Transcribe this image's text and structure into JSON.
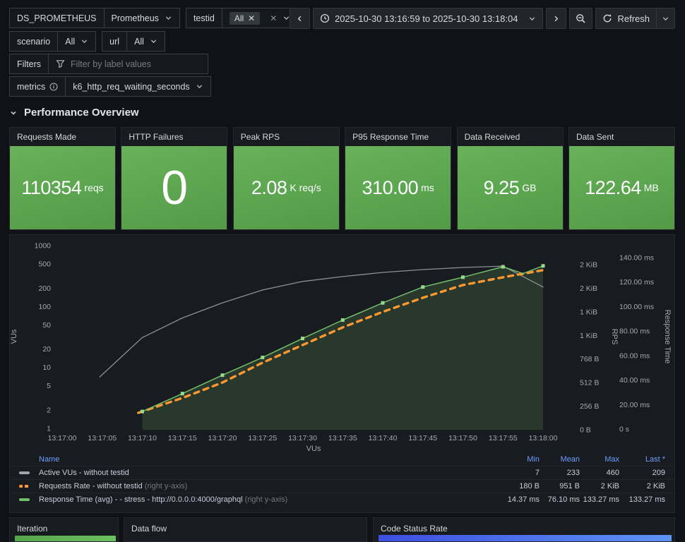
{
  "filters": {
    "ds_label": "DS_PROMETHEUS",
    "ds_value": "Prometheus",
    "testid_label": "testid",
    "testid_chip": "All",
    "scenario_label": "scenario",
    "scenario_value": "All",
    "url_label": "url",
    "url_value": "All",
    "filters_label": "Filters",
    "filters_placeholder": "Filter by label values",
    "metrics_label": "metrics",
    "metrics_value": "k6_http_req_waiting_seconds"
  },
  "timebar": {
    "range": "2025-10-30 13:16:59 to 2025-10-30 13:18:04",
    "refresh_label": "Refresh"
  },
  "section": {
    "title": "Performance Overview"
  },
  "icons": [
    "chevron-down-icon",
    "chevron-left-icon",
    "chevron-right-icon",
    "clock-icon",
    "zoom-out-icon",
    "refresh-icon",
    "funnel-icon",
    "info-icon",
    "close-icon",
    "section-collapse-icon"
  ],
  "colors": {
    "page_bg": "#111217",
    "panel_bg": "#181b1f",
    "stat_gradient_top": "#68b25a",
    "stat_gradient_bottom": "#539a47",
    "vus_line": "#a2a4ab",
    "rps_line": "#ff9830",
    "rt_line": "#73bf69",
    "rt_fill": "rgba(115,191,105,0.18)",
    "legend_header": "#6e9fff",
    "iteration_bar_from": "#56a64b",
    "iteration_bar_to": "#6abf60",
    "code_status_bar_from": "#3d4fe0",
    "code_status_bar_to": "#5d93f5"
  },
  "stats": {
    "panels": [
      {
        "title": "Requests Made",
        "value": "110354",
        "unit": "reqs",
        "huge": false
      },
      {
        "title": "HTTP Failures",
        "value": "0",
        "unit": "",
        "huge": true
      },
      {
        "title": "Peak RPS",
        "value": "2.08",
        "unit": "K req/s",
        "huge": false
      },
      {
        "title": "P95 Response Time",
        "value": "310.00",
        "unit": "ms",
        "huge": false
      },
      {
        "title": "Data Received",
        "value": "9.25",
        "unit": "GB",
        "huge": false
      },
      {
        "title": "Data Sent",
        "value": "122.64",
        "unit": "MB",
        "huge": false
      }
    ]
  },
  "chart_data": {
    "type": "line",
    "x_tick_labels": [
      "13:17:00",
      "13:17:05",
      "13:17:10",
      "13:17:15",
      "13:17:20",
      "13:17:25",
      "13:17:30",
      "13:17:35",
      "13:17:40",
      "13:17:45",
      "13:17:50",
      "13:17:55",
      "13:18:00"
    ],
    "x_range_seconds": [
      0,
      60
    ],
    "xlabel": "VUs",
    "left_axis": {
      "label": "VUs",
      "scale": "log",
      "ticks": [
        1000,
        500,
        200,
        100,
        50,
        20,
        10,
        5,
        2,
        1
      ],
      "range": [
        1,
        1000
      ]
    },
    "right_axis_rps": {
      "label": "RPS",
      "tick_labels": [
        "2 KiB",
        "2 KiB",
        "1 KiB",
        "1 KiB",
        "768 B",
        "512 B",
        "256 B",
        "0 B"
      ],
      "tick_bytes": [
        1792,
        1536,
        1280,
        1024,
        768,
        512,
        256,
        0
      ],
      "range_bytes": [
        0,
        1792
      ]
    },
    "right_axis_rt": {
      "label": "Response Time",
      "tick_labels": [
        "140.00 ms",
        "120.00 ms",
        "100.00 ms",
        "80.00 ms",
        "60.00 ms",
        "40.00 ms",
        "20.00 ms",
        "0 s"
      ],
      "tick_ms": [
        140,
        120,
        100,
        80,
        60,
        40,
        20,
        0
      ],
      "range_ms": [
        0,
        140
      ]
    },
    "series": [
      {
        "name": "Active VUs - without testid",
        "axis": "vus",
        "style": "solid",
        "color": "#a2a4ab",
        "points": [
          [
            4.7,
            7
          ],
          [
            10,
            31
          ],
          [
            15,
            65
          ],
          [
            20,
            115
          ],
          [
            25,
            187
          ],
          [
            30,
            258
          ],
          [
            35,
            310
          ],
          [
            40,
            363
          ],
          [
            45,
            404
          ],
          [
            50,
            437
          ],
          [
            55,
            460
          ],
          [
            60,
            209
          ]
        ]
      },
      {
        "name": "Requests Rate - without testid",
        "axis": "rps",
        "style": "dashed",
        "color": "#ff9830",
        "points": [
          [
            9.5,
            184
          ],
          [
            15,
            345
          ],
          [
            20,
            513
          ],
          [
            25,
            728
          ],
          [
            30,
            920
          ],
          [
            35,
            1111
          ],
          [
            40,
            1280
          ],
          [
            45,
            1433
          ],
          [
            50,
            1571
          ],
          [
            55,
            1655
          ],
          [
            60,
            1732
          ]
        ]
      },
      {
        "name": "Response Time (avg) - - stress - http://0.0.0.0:4000/graphql",
        "axis": "rt",
        "style": "solid-markers",
        "color": "#73bf69",
        "fill": true,
        "points": [
          [
            10,
            14.37
          ],
          [
            15,
            29
          ],
          [
            20,
            44
          ],
          [
            25,
            58.5
          ],
          [
            30,
            74
          ],
          [
            35,
            89
          ],
          [
            40,
            103
          ],
          [
            45,
            116
          ],
          [
            50,
            124
          ],
          [
            55,
            132.5
          ],
          [
            57.5,
            127
          ],
          [
            60,
            133.27
          ]
        ],
        "marker_ts": [
          10,
          15,
          20,
          25,
          30,
          35,
          40,
          45,
          50,
          55,
          60
        ]
      }
    ],
    "legend": {
      "headers": [
        "Name",
        "Min",
        "Mean",
        "Max",
        "Last *"
      ],
      "rows": [
        {
          "name": "Active VUs - without testid",
          "suffix": "",
          "swatch": "solid",
          "color": "#a2a4ab",
          "values": [
            "7",
            "233",
            "460",
            "209"
          ]
        },
        {
          "name": "Requests Rate - without testid",
          "suffix": " (right y-axis)",
          "swatch": "dashed",
          "color": "#ff9830",
          "values": [
            "180 B",
            "951 B",
            "2 KiB",
            "2 KiB"
          ]
        },
        {
          "name": "Response Time (avg) - - stress - http://0.0.0.0:4000/graphql",
          "suffix": " (right y-axis)",
          "swatch": "solid",
          "color": "#73bf69",
          "values": [
            "14.37 ms",
            "76.10 ms",
            "133.27 ms",
            "133.27 ms"
          ]
        }
      ]
    }
  },
  "bottom": {
    "panels": [
      {
        "title": "Iteration"
      },
      {
        "title": "Data flow"
      },
      {
        "title": "Code Status Rate"
      }
    ]
  }
}
